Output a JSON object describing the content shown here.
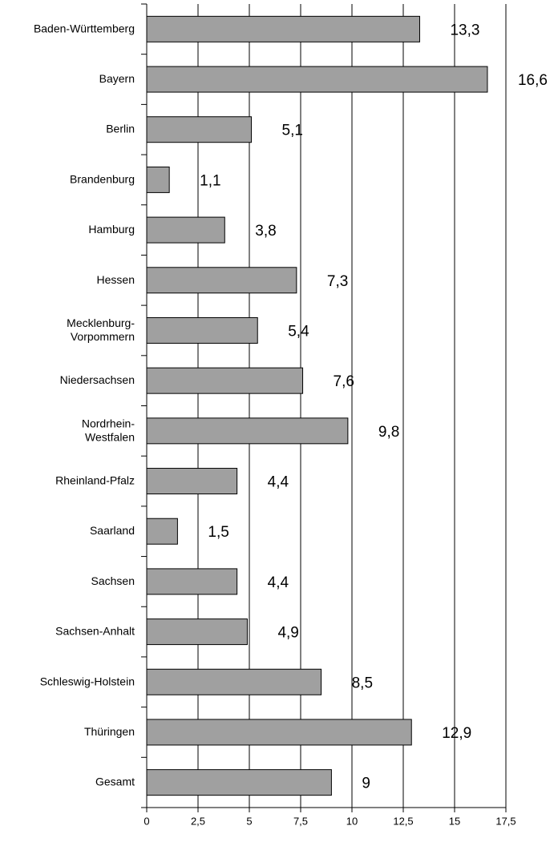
{
  "chart_data": {
    "type": "barh",
    "categories": [
      "Baden-Württemberg",
      "Bayern",
      "Berlin",
      "Brandenburg",
      "Hamburg",
      "Hessen",
      "Mecklenburg-\nVorpommern",
      "Niedersachsen",
      "Nordrhein-\nWestfalen",
      "Rheinland-Pfalz",
      "Saarland",
      "Sachsen",
      "Sachsen-Anhalt",
      "Schleswig-Holstein",
      "Thüringen",
      "Gesamt"
    ],
    "values": [
      13.3,
      16.6,
      5.1,
      1.1,
      3.8,
      7.3,
      5.4,
      7.6,
      9.8,
      4.4,
      1.5,
      4.4,
      4.9,
      8.5,
      12.9,
      9
    ],
    "value_labels": [
      "13,3",
      "16,6",
      "5,1",
      "1,1",
      "3,8",
      "7,3",
      "5,4",
      "7,6",
      "9,8",
      "4,4",
      "1,5",
      "4,4",
      "4,9",
      "8,5",
      "12,9",
      "9"
    ],
    "color": "#a0a0a0",
    "xlim": [
      0,
      17.5
    ],
    "xticks": [
      0,
      {
        "value": 2.5,
        "label": "2,5"
      },
      5,
      {
        "value": 7.5,
        "label": "7,5"
      },
      10,
      {
        "value": 12.5,
        "label": "12,5"
      },
      15,
      {
        "value": 17.5,
        "label": "17,5"
      }
    ],
    "grid": true
  }
}
